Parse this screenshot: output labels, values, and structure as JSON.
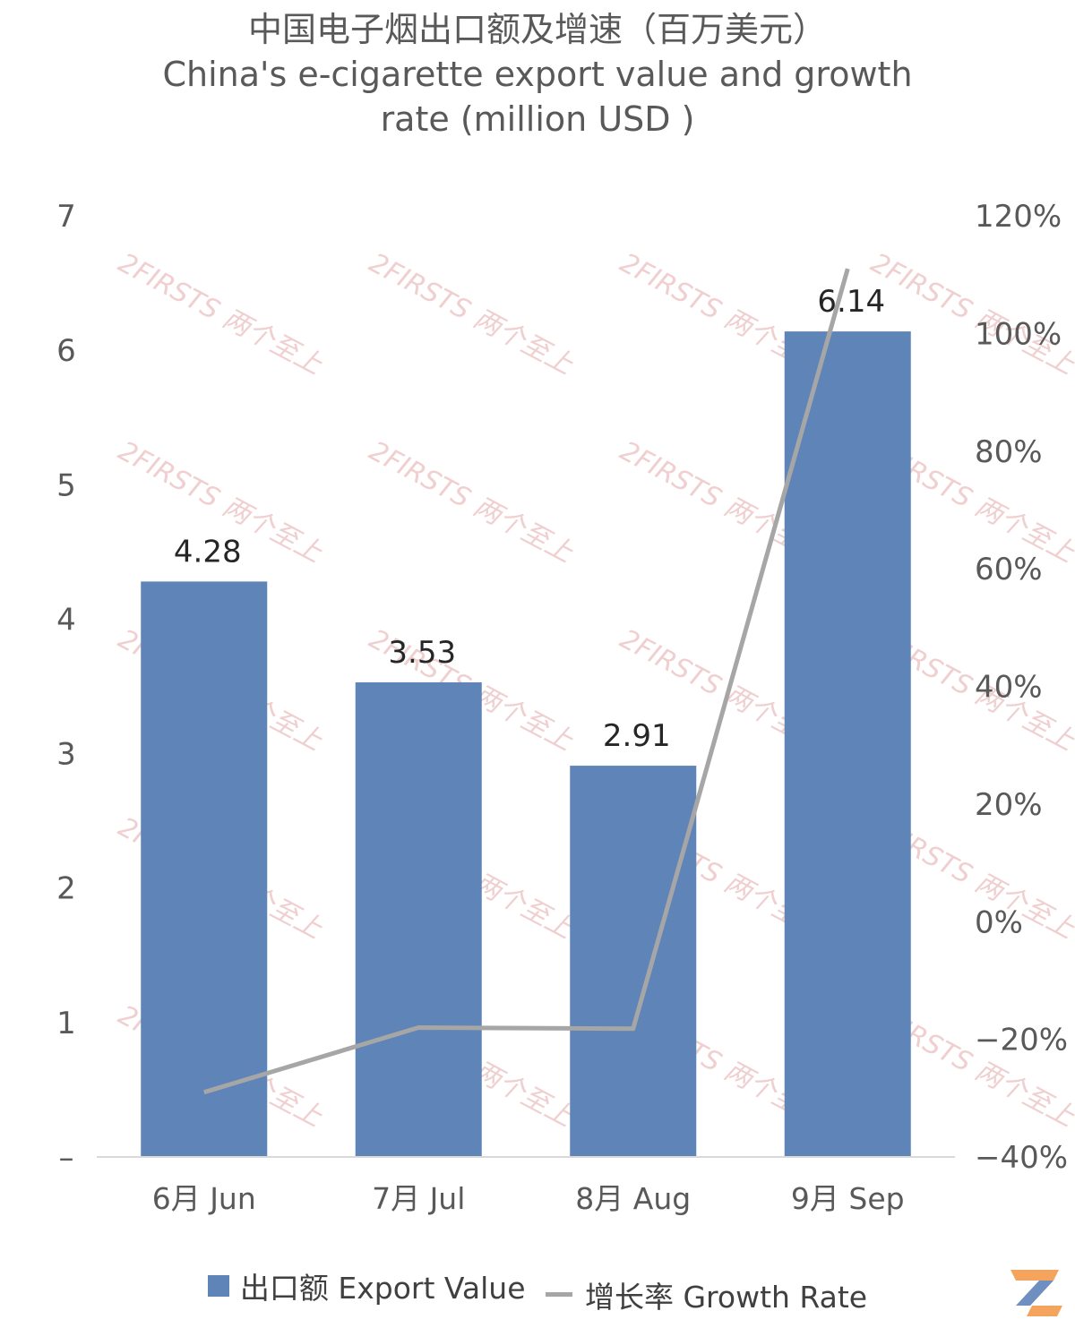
{
  "title": {
    "line1": "中国电子烟出口额及增速（百万美元）",
    "line2": "China's e-cigarette export value and growth",
    "line3": "rate (million USD )"
  },
  "legend": {
    "bar_label": "出口额 Export Value",
    "line_label": "增长率 Growth Rate"
  },
  "watermark": {
    "text": "2FIRSTS 两个至上"
  },
  "colors": {
    "bar": "#5f84b7",
    "line": "#a6a6a6",
    "axis_text": "#595959",
    "watermark": "#e3a8a8",
    "logo_orange": "#f5a45d",
    "logo_blue": "#6e8fbf"
  },
  "chart_data": {
    "type": "bar",
    "categories": [
      "6月 Jun",
      "7月 Jul",
      "8月 Aug",
      "9月 Sep"
    ],
    "series": [
      {
        "name": "出口额 Export Value",
        "type": "bar",
        "axis": "left",
        "values": [
          4.28,
          3.53,
          2.91,
          6.14
        ],
        "data_labels": [
          "4.28",
          "3.53",
          "2.91",
          "6.14"
        ]
      },
      {
        "name": "增长率 Growth Rate",
        "type": "line",
        "axis": "right",
        "values": [
          -29,
          -18,
          -18.2,
          111
        ]
      }
    ],
    "y_left": {
      "ylim": [
        0,
        7
      ],
      "ticks": [
        "–",
        "1",
        "2",
        "3",
        "4",
        "5",
        "6",
        "7"
      ]
    },
    "y_right": {
      "ylim": [
        -40,
        120
      ],
      "ticks": [
        "-40%",
        "-20%",
        "0%",
        "20%",
        "40%",
        "60%",
        "80%",
        "100%",
        "120%"
      ]
    },
    "grid": false,
    "legend_position": "bottom"
  }
}
